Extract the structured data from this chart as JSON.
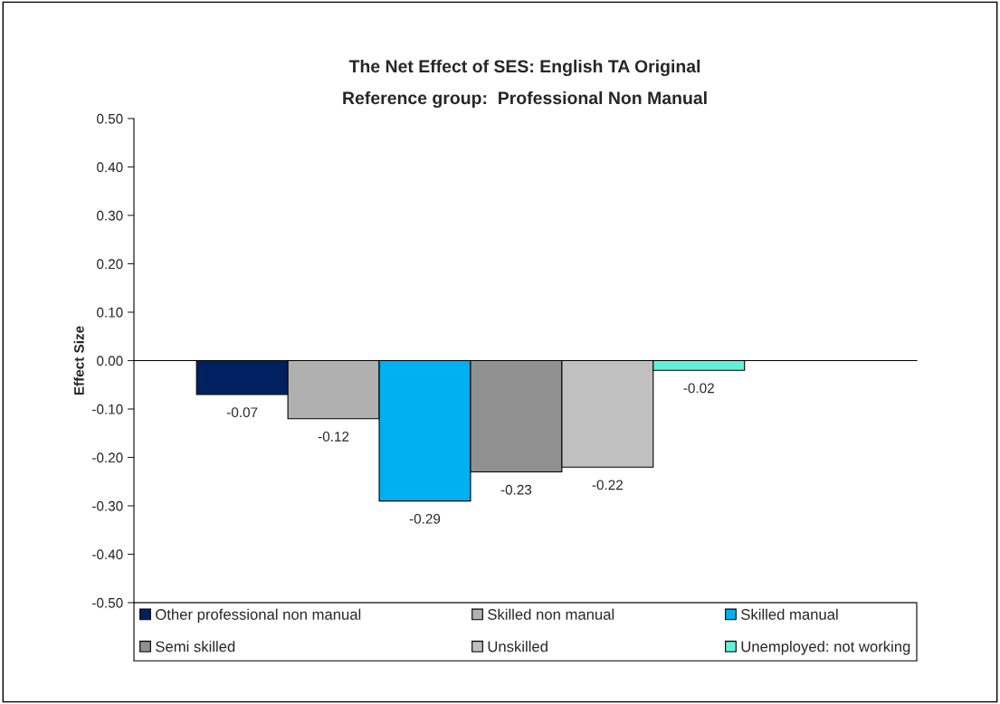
{
  "chart_data": {
    "type": "bar",
    "title": "The Net Effect of SES: English TA Original",
    "subtitle": "Reference group:  Professional Non Manual",
    "ylabel": "Effect Size",
    "categories": [
      null
    ],
    "series": [
      {
        "name": "Other professional non manual",
        "color": "#002060",
        "values": [
          -0.07
        ]
      },
      {
        "name": "Skilled non manual",
        "color": "#b0b0b0",
        "values": [
          -0.12
        ]
      },
      {
        "name": "Skilled manual",
        "color": "#00b0f0",
        "values": [
          -0.29
        ]
      },
      {
        "name": "Semi skilled",
        "color": "#909090",
        "values": [
          -0.23
        ]
      },
      {
        "name": "Unskilled",
        "color": "#c0c0c0",
        "values": [
          -0.22
        ]
      },
      {
        "name": "Unemployed: not working",
        "color": "#66f0d8",
        "values": [
          -0.02
        ]
      }
    ],
    "ylim": [
      -0.5,
      0.5
    ],
    "yticks": [
      {
        "value": -0.5,
        "label": "-0.50"
      },
      {
        "value": -0.4,
        "label": "-0.40"
      },
      {
        "value": -0.3,
        "label": "-0.30"
      },
      {
        "value": -0.2,
        "label": "-0.20"
      },
      {
        "value": -0.1,
        "label": "-0.10"
      },
      {
        "value": 0,
        "label": "0.00"
      },
      {
        "value": 0.1,
        "label": "0.10"
      },
      {
        "value": 0.2,
        "label": "0.20"
      },
      {
        "value": 0.3,
        "label": "0.30"
      },
      {
        "value": 0.4,
        "label": "0.40"
      },
      {
        "value": 0.5,
        "label": "0.50"
      }
    ],
    "data_labels": true,
    "legend": "bottom"
  }
}
